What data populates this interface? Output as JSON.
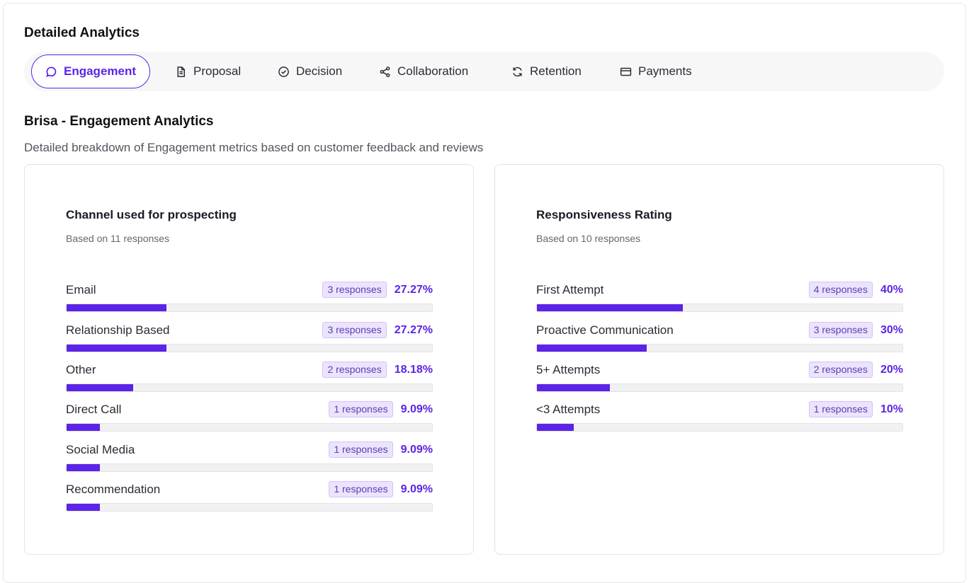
{
  "section_title": "Detailed Analytics",
  "tabs": [
    {
      "label": "Engagement",
      "icon": "chat-bubble-icon",
      "active": true
    },
    {
      "label": "Proposal",
      "icon": "document-icon",
      "active": false
    },
    {
      "label": "Decision",
      "icon": "check-circle-icon",
      "active": false
    },
    {
      "label": "Collaboration",
      "icon": "share-icon",
      "active": false
    },
    {
      "label": "Retention",
      "icon": "refresh-icon",
      "active": false
    },
    {
      "label": "Payments",
      "icon": "credit-card-icon",
      "active": false
    }
  ],
  "page": {
    "heading": "Brisa - Engagement Analytics",
    "subtitle": "Detailed breakdown of Engagement metrics based on customer feedback and reviews"
  },
  "colors": {
    "accent": "#5b24e6",
    "badge_bg": "#ece4fd",
    "track": "#f1f1f3"
  },
  "cards": [
    {
      "title": "Channel used for prospecting",
      "subtitle": "Based on 11 responses",
      "rows": [
        {
          "label": "Email",
          "responses": "3 responses",
          "percent": "27.27%",
          "fraction": 0.2727
        },
        {
          "label": "Relationship Based",
          "responses": "3 responses",
          "percent": "27.27%",
          "fraction": 0.2727
        },
        {
          "label": "Other",
          "responses": "2 responses",
          "percent": "18.18%",
          "fraction": 0.1818
        },
        {
          "label": "Direct Call",
          "responses": "1 responses",
          "percent": "9.09%",
          "fraction": 0.0909
        },
        {
          "label": "Social Media",
          "responses": "1 responses",
          "percent": "9.09%",
          "fraction": 0.0909
        },
        {
          "label": "Recommendation",
          "responses": "1 responses",
          "percent": "9.09%",
          "fraction": 0.0909
        }
      ]
    },
    {
      "title": "Responsiveness Rating",
      "subtitle": "Based on 10 responses",
      "rows": [
        {
          "label": "First Attempt",
          "responses": "4 responses",
          "percent": "40%",
          "fraction": 0.4
        },
        {
          "label": "Proactive Communication",
          "responses": "3 responses",
          "percent": "30%",
          "fraction": 0.3
        },
        {
          "label": "5+ Attempts",
          "responses": "2 responses",
          "percent": "20%",
          "fraction": 0.2
        },
        {
          "label": "<3 Attempts",
          "responses": "1 responses",
          "percent": "10%",
          "fraction": 0.1
        }
      ]
    }
  ]
}
